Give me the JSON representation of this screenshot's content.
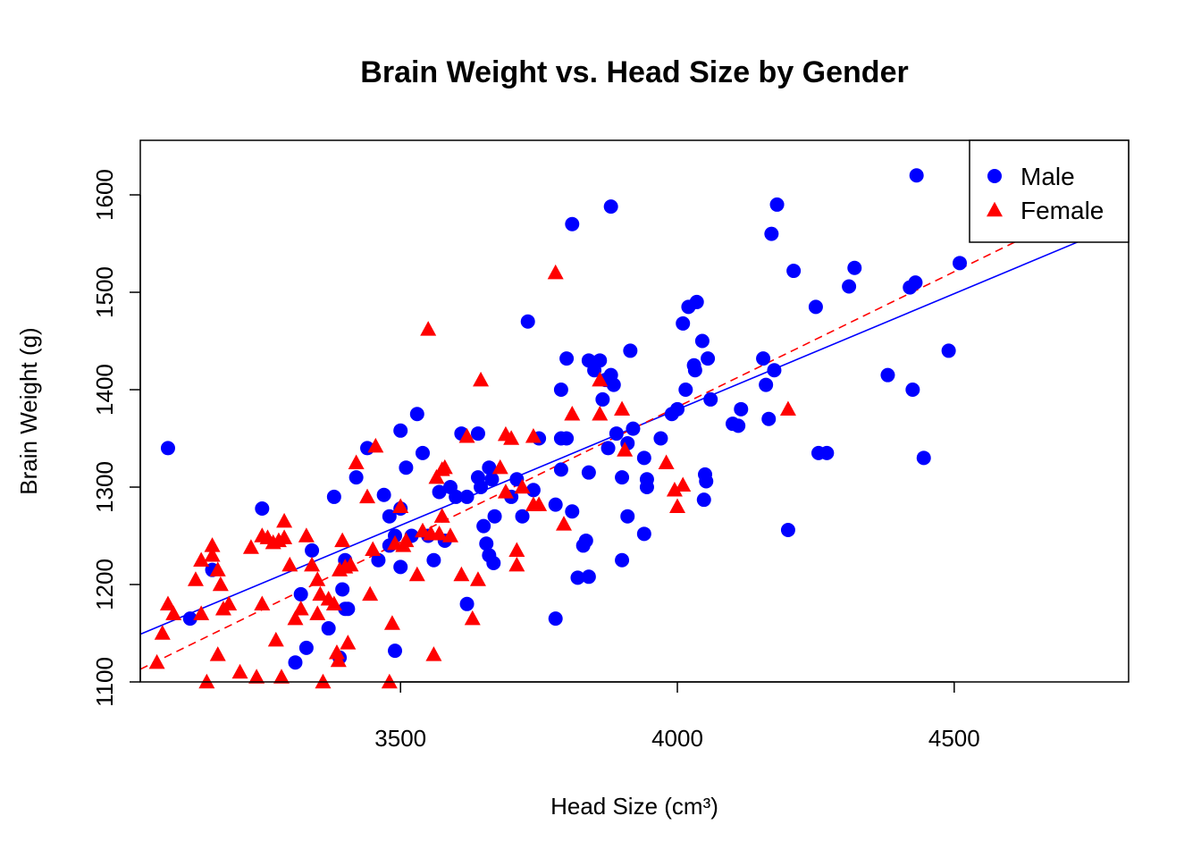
{
  "chart_data": {
    "type": "scatter",
    "title": "Brain Weight vs. Head Size by Gender",
    "xlabel": "Head Size (cm³)",
    "ylabel": "Brain Weight (g)",
    "xlim": [
      3030,
      4815
    ],
    "ylim": [
      1100,
      1656
    ],
    "x_ticks": [
      3500,
      4000,
      4500
    ],
    "y_ticks": [
      1100,
      1200,
      1300,
      1400,
      1500,
      1600
    ],
    "grid": false,
    "legend_position": "top-right",
    "series": [
      {
        "name": "Male",
        "marker": "circle",
        "color": "#0000ff",
        "trendline": {
          "style": "solid",
          "from": [
            3030,
            1149
          ],
          "to": [
            4750,
            1558
          ]
        },
        "points": [
          [
            3080,
            1340
          ],
          [
            3120,
            1165
          ],
          [
            3160,
            1215
          ],
          [
            3250,
            1278
          ],
          [
            3310,
            1120
          ],
          [
            3320,
            1190
          ],
          [
            3330,
            1135
          ],
          [
            3340,
            1235
          ],
          [
            3370,
            1155
          ],
          [
            3380,
            1290
          ],
          [
            3390,
            1125
          ],
          [
            3395,
            1195
          ],
          [
            3400,
            1175
          ],
          [
            3400,
            1225
          ],
          [
            3405,
            1175
          ],
          [
            3420,
            1310
          ],
          [
            3440,
            1340
          ],
          [
            3460,
            1225
          ],
          [
            3470,
            1292
          ],
          [
            3480,
            1270
          ],
          [
            3480,
            1240
          ],
          [
            3490,
            1132
          ],
          [
            3490,
            1250
          ],
          [
            3500,
            1358
          ],
          [
            3500,
            1218
          ],
          [
            3500,
            1278
          ],
          [
            3510,
            1320
          ],
          [
            3520,
            1250
          ],
          [
            3530,
            1375
          ],
          [
            3540,
            1335
          ],
          [
            3550,
            1250
          ],
          [
            3560,
            1225
          ],
          [
            3570,
            1295
          ],
          [
            3580,
            1245
          ],
          [
            3590,
            1300
          ],
          [
            3600,
            1290
          ],
          [
            3610,
            1355
          ],
          [
            3620,
            1180
          ],
          [
            3620,
            1290
          ],
          [
            3640,
            1355
          ],
          [
            3640,
            1310
          ],
          [
            3645,
            1300
          ],
          [
            3650,
            1260
          ],
          [
            3655,
            1242
          ],
          [
            3660,
            1320
          ],
          [
            3660,
            1230
          ],
          [
            3665,
            1308
          ],
          [
            3668,
            1222
          ],
          [
            3670,
            1270
          ],
          [
            3700,
            1290
          ],
          [
            3710,
            1308
          ],
          [
            3720,
            1270
          ],
          [
            3730,
            1470
          ],
          [
            3740,
            1297
          ],
          [
            3750,
            1350
          ],
          [
            3780,
            1165
          ],
          [
            3780,
            1282
          ],
          [
            3790,
            1350
          ],
          [
            3790,
            1318
          ],
          [
            3790,
            1400
          ],
          [
            3800,
            1350
          ],
          [
            3800,
            1432
          ],
          [
            3810,
            1570
          ],
          [
            3810,
            1275
          ],
          [
            3820,
            1207
          ],
          [
            3830,
            1240
          ],
          [
            3835,
            1245
          ],
          [
            3840,
            1208
          ],
          [
            3840,
            1315
          ],
          [
            3840,
            1430
          ],
          [
            3850,
            1420
          ],
          [
            3860,
            1430
          ],
          [
            3865,
            1390
          ],
          [
            3870,
            1410
          ],
          [
            3875,
            1340
          ],
          [
            3880,
            1588
          ],
          [
            3880,
            1415
          ],
          [
            3885,
            1405
          ],
          [
            3890,
            1355
          ],
          [
            3900,
            1310
          ],
          [
            3900,
            1225
          ],
          [
            3910,
            1345
          ],
          [
            3910,
            1270
          ],
          [
            3915,
            1440
          ],
          [
            3920,
            1360
          ],
          [
            3940,
            1252
          ],
          [
            3940,
            1330
          ],
          [
            3945,
            1308
          ],
          [
            3945,
            1300
          ],
          [
            3970,
            1350
          ],
          [
            3990,
            1375
          ],
          [
            4000,
            1380
          ],
          [
            4010,
            1468
          ],
          [
            4015,
            1400
          ],
          [
            4020,
            1485
          ],
          [
            4030,
            1425
          ],
          [
            4032,
            1420
          ],
          [
            4035,
            1490
          ],
          [
            4045,
            1450
          ],
          [
            4048,
            1287
          ],
          [
            4050,
            1313
          ],
          [
            4052,
            1306
          ],
          [
            4055,
            1432
          ],
          [
            4060,
            1390
          ],
          [
            4100,
            1365
          ],
          [
            4110,
            1363
          ],
          [
            4115,
            1380
          ],
          [
            4155,
            1432
          ],
          [
            4160,
            1405
          ],
          [
            4165,
            1370
          ],
          [
            4170,
            1560
          ],
          [
            4175,
            1420
          ],
          [
            4180,
            1590
          ],
          [
            4200,
            1256
          ],
          [
            4210,
            1522
          ],
          [
            4250,
            1485
          ],
          [
            4255,
            1335
          ],
          [
            4270,
            1335
          ],
          [
            4310,
            1506
          ],
          [
            4320,
            1525
          ],
          [
            4380,
            1415
          ],
          [
            4420,
            1505
          ],
          [
            4425,
            1400
          ],
          [
            4430,
            1510
          ],
          [
            4432,
            1620
          ],
          [
            4445,
            1330
          ],
          [
            4490,
            1440
          ],
          [
            4510,
            1530
          ]
        ]
      },
      {
        "name": "Female",
        "marker": "triangle",
        "color": "#ff0000",
        "trendline": {
          "style": "dashed",
          "from": [
            3030,
            1113
          ],
          "to": [
            4640,
            1560
          ]
        },
        "points": [
          [
            3060,
            1120
          ],
          [
            3070,
            1150
          ],
          [
            3080,
            1180
          ],
          [
            3090,
            1170
          ],
          [
            3130,
            1205
          ],
          [
            3140,
            1225
          ],
          [
            3140,
            1170
          ],
          [
            3150,
            1100
          ],
          [
            3160,
            1240
          ],
          [
            3160,
            1230
          ],
          [
            3170,
            1215
          ],
          [
            3170,
            1128
          ],
          [
            3175,
            1200
          ],
          [
            3180,
            1175
          ],
          [
            3190,
            1180
          ],
          [
            3210,
            1110
          ],
          [
            3230,
            1238
          ],
          [
            3240,
            1105
          ],
          [
            3250,
            1180
          ],
          [
            3250,
            1250
          ],
          [
            3260,
            1248
          ],
          [
            3270,
            1243
          ],
          [
            3275,
            1143
          ],
          [
            3280,
            1245
          ],
          [
            3285,
            1105
          ],
          [
            3290,
            1265
          ],
          [
            3290,
            1248
          ],
          [
            3300,
            1220
          ],
          [
            3310,
            1165
          ],
          [
            3320,
            1175
          ],
          [
            3330,
            1250
          ],
          [
            3340,
            1220
          ],
          [
            3350,
            1205
          ],
          [
            3350,
            1170
          ],
          [
            3355,
            1190
          ],
          [
            3360,
            1100
          ],
          [
            3370,
            1185
          ],
          [
            3380,
            1180
          ],
          [
            3385,
            1130
          ],
          [
            3388,
            1122
          ],
          [
            3390,
            1215
          ],
          [
            3395,
            1245
          ],
          [
            3400,
            1218
          ],
          [
            3405,
            1140
          ],
          [
            3410,
            1220
          ],
          [
            3420,
            1325
          ],
          [
            3440,
            1290
          ],
          [
            3445,
            1190
          ],
          [
            3450,
            1236
          ],
          [
            3455,
            1342
          ],
          [
            3480,
            1100
          ],
          [
            3485,
            1160
          ],
          [
            3490,
            1242
          ],
          [
            3500,
            1280
          ],
          [
            3505,
            1240
          ],
          [
            3510,
            1245
          ],
          [
            3530,
            1210
          ],
          [
            3540,
            1255
          ],
          [
            3550,
            1462
          ],
          [
            3555,
            1252
          ],
          [
            3560,
            1128
          ],
          [
            3565,
            1310
          ],
          [
            3570,
            1252
          ],
          [
            3575,
            1318
          ],
          [
            3575,
            1270
          ],
          [
            3580,
            1320
          ],
          [
            3590,
            1250
          ],
          [
            3610,
            1210
          ],
          [
            3620,
            1352
          ],
          [
            3630,
            1165
          ],
          [
            3640,
            1205
          ],
          [
            3645,
            1410
          ],
          [
            3680,
            1320
          ],
          [
            3690,
            1354
          ],
          [
            3690,
            1295
          ],
          [
            3700,
            1350
          ],
          [
            3710,
            1235
          ],
          [
            3710,
            1220
          ],
          [
            3720,
            1300
          ],
          [
            3740,
            1352
          ],
          [
            3740,
            1282
          ],
          [
            3750,
            1282
          ],
          [
            3780,
            1520
          ],
          [
            3795,
            1262
          ],
          [
            3810,
            1375
          ],
          [
            3860,
            1410
          ],
          [
            3860,
            1375
          ],
          [
            3900,
            1380
          ],
          [
            3905,
            1338
          ],
          [
            3980,
            1325
          ],
          [
            3995,
            1297
          ],
          [
            4000,
            1280
          ],
          [
            4010,
            1302
          ],
          [
            4200,
            1380
          ]
        ]
      }
    ]
  }
}
